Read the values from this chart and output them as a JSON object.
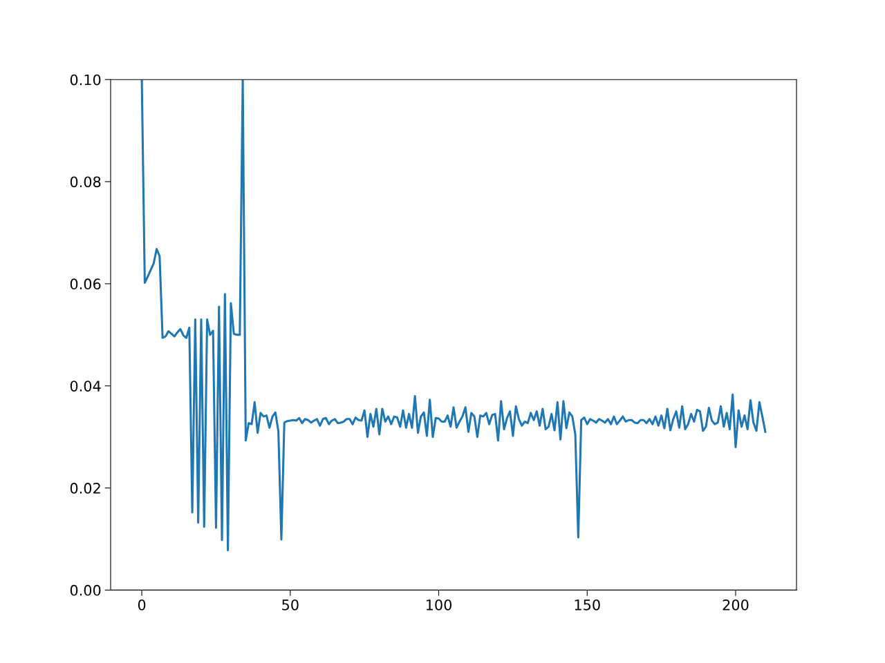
{
  "chart_data": {
    "type": "line",
    "x": [
      0,
      1,
      2,
      3,
      4,
      5,
      6,
      7,
      8,
      9,
      10,
      11,
      12,
      13,
      14,
      15,
      16,
      17,
      18,
      19,
      20,
      21,
      22,
      23,
      24,
      25,
      26,
      27,
      28,
      29,
      30,
      31,
      32,
      33,
      34,
      35,
      36,
      37,
      38,
      39,
      40,
      41,
      42,
      43,
      44,
      45,
      46,
      47,
      48,
      49,
      50,
      51,
      52,
      53,
      54,
      55,
      56,
      57,
      58,
      59,
      60,
      61,
      62,
      63,
      64,
      65,
      66,
      67,
      68,
      69,
      70,
      71,
      72,
      73,
      74,
      75,
      76,
      77,
      78,
      79,
      80,
      81,
      82,
      83,
      84,
      85,
      86,
      87,
      88,
      89,
      90,
      91,
      92,
      93,
      94,
      95,
      96,
      97,
      98,
      99,
      100,
      101,
      102,
      103,
      104,
      105,
      106,
      107,
      108,
      109,
      110,
      111,
      112,
      113,
      114,
      115,
      116,
      117,
      118,
      119,
      120,
      121,
      122,
      123,
      124,
      125,
      126,
      127,
      128,
      129,
      130,
      131,
      132,
      133,
      134,
      135,
      136,
      137,
      138,
      139,
      140,
      141,
      142,
      143,
      144,
      145,
      146,
      147,
      148,
      149,
      150,
      151,
      152,
      153,
      154,
      155,
      156,
      157,
      158,
      159,
      160,
      161,
      162,
      163,
      164,
      165,
      166,
      167,
      168,
      169,
      170,
      171,
      172,
      173,
      174,
      175,
      176,
      177,
      178,
      179,
      180,
      181,
      182,
      183,
      184,
      185,
      186,
      187,
      188,
      189,
      190,
      191,
      192,
      193,
      194,
      195,
      196,
      197,
      198,
      199,
      200,
      201,
      202,
      203,
      204,
      205,
      206,
      207,
      208,
      209,
      210
    ],
    "series": [
      {
        "color": "#1f77b4",
        "values": [
          0.1,
          0.0602,
          0.0614,
          0.0627,
          0.064,
          0.0668,
          0.0654,
          0.0494,
          0.0497,
          0.0507,
          0.0502,
          0.0497,
          0.0505,
          0.0511,
          0.0499,
          0.0494,
          0.0514,
          0.0152,
          0.053,
          0.0132,
          0.053,
          0.0124,
          0.053,
          0.05,
          0.0508,
          0.0122,
          0.0555,
          0.0098,
          0.058,
          0.0078,
          0.0562,
          0.0502,
          0.05,
          0.05,
          0.1,
          0.0293,
          0.0327,
          0.0325,
          0.0368,
          0.0308,
          0.0347,
          0.034,
          0.0342,
          0.0318,
          0.034,
          0.0348,
          0.0311,
          0.0099,
          0.0328,
          0.0331,
          0.0332,
          0.0333,
          0.0332,
          0.0337,
          0.0327,
          0.0335,
          0.0333,
          0.0328,
          0.0332,
          0.0335,
          0.0322,
          0.0335,
          0.0337,
          0.0325,
          0.0332,
          0.0335,
          0.0327,
          0.0328,
          0.033,
          0.0335,
          0.0335,
          0.0325,
          0.0338,
          0.0333,
          0.0332,
          0.0352,
          0.03,
          0.0345,
          0.032,
          0.0355,
          0.0305,
          0.0355,
          0.033,
          0.034,
          0.0325,
          0.034,
          0.0338,
          0.032,
          0.0352,
          0.0318,
          0.0345,
          0.0318,
          0.038,
          0.0308,
          0.034,
          0.0348,
          0.0302,
          0.0373,
          0.03,
          0.0337,
          0.0336,
          0.033,
          0.033,
          0.0342,
          0.032,
          0.0358,
          0.0318,
          0.033,
          0.034,
          0.0358,
          0.031,
          0.0347,
          0.034,
          0.03,
          0.0342,
          0.034,
          0.0347,
          0.0325,
          0.0343,
          0.0345,
          0.0293,
          0.037,
          0.0315,
          0.0337,
          0.035,
          0.0302,
          0.036,
          0.0335,
          0.0322,
          0.033,
          0.0327,
          0.0347,
          0.0333,
          0.035,
          0.0322,
          0.0355,
          0.0315,
          0.032,
          0.0345,
          0.0313,
          0.0368,
          0.0295,
          0.037,
          0.0317,
          0.0348,
          0.034,
          0.0305,
          0.0103,
          0.0333,
          0.0338,
          0.0325,
          0.0335,
          0.0332,
          0.0328,
          0.0335,
          0.0332,
          0.0328,
          0.0335,
          0.0325,
          0.034,
          0.0325,
          0.0332,
          0.034,
          0.033,
          0.0333,
          0.0333,
          0.0328,
          0.0327,
          0.0333,
          0.0333,
          0.0327,
          0.0335,
          0.0325,
          0.034,
          0.0322,
          0.0342,
          0.0317,
          0.0355,
          0.0313,
          0.0335,
          0.035,
          0.0318,
          0.036,
          0.0315,
          0.0325,
          0.0345,
          0.033,
          0.0353,
          0.035,
          0.0312,
          0.032,
          0.0357,
          0.0332,
          0.0325,
          0.0328,
          0.036,
          0.032,
          0.0347,
          0.0315,
          0.0383,
          0.028,
          0.0352,
          0.032,
          0.0342,
          0.0315,
          0.0372,
          0.0328,
          0.0312,
          0.0368,
          0.034,
          0.031
        ]
      }
    ],
    "xlim": [
      -10.5,
      220.5
    ],
    "xticks": [
      0,
      50,
      100,
      150,
      200
    ],
    "ylim": [
      0,
      0.1
    ],
    "yticks": [
      {
        "value": 0,
        "label": "0.00"
      },
      {
        "value": 0.02,
        "label": "0.02"
      },
      {
        "value": 0.04,
        "label": "0.04"
      },
      {
        "value": 0.06,
        "label": "0.06"
      },
      {
        "value": 0.08,
        "label": "0.08"
      },
      {
        "value": 0.1,
        "label": "0.10"
      }
    ],
    "grid": false,
    "marker": "none",
    "line_style": "solid"
  }
}
